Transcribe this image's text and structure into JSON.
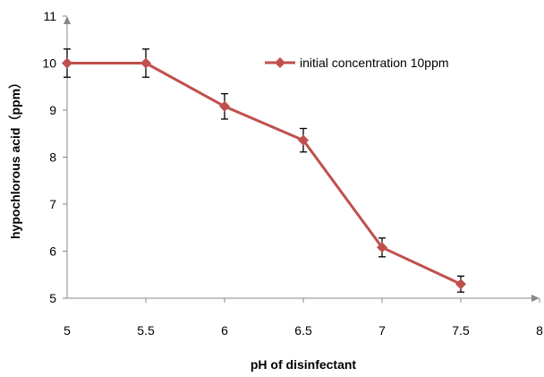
{
  "chart_data": {
    "type": "line",
    "xlabel": "pH of disinfectant",
    "ylabel": "hypochlorous acid（ppm）",
    "xlim": [
      5,
      8
    ],
    "ylim": [
      5,
      11
    ],
    "x_ticks": [
      "5",
      "5.5",
      "6",
      "6.5",
      "7",
      "7.5",
      "8"
    ],
    "y_ticks": [
      "5",
      "6",
      "7",
      "8",
      "9",
      "10",
      "11"
    ],
    "grid": false,
    "legend_position": "top-right",
    "series": [
      {
        "name": "initial concentration 10ppm",
        "color": "#c0504d",
        "marker": "diamond",
        "x": [
          5,
          5.5,
          6,
          6.5,
          7,
          7.5
        ],
        "y": [
          10,
          10,
          9.08,
          8.36,
          6.08,
          5.3
        ],
        "error": [
          0.3,
          0.3,
          0.27,
          0.25,
          0.2,
          0.17
        ]
      }
    ]
  }
}
